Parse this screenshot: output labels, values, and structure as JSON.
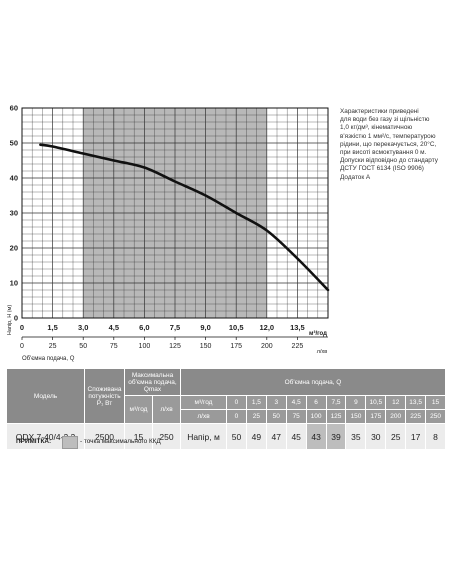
{
  "chart_data": {
    "type": "line",
    "x_primary": {
      "label": "м³/год",
      "ticks": [
        "0",
        "1,5",
        "3,0",
        "4,5",
        "6,0",
        "7,5",
        "9,0",
        "10,5",
        "12,0",
        "13,5"
      ],
      "range": [
        0,
        15
      ]
    },
    "x_secondary": {
      "label": "Об'ємна подача, Q",
      "unit": "л/хв",
      "ticks": [
        "0",
        "25",
        "50",
        "75",
        "100",
        "125",
        "150",
        "175",
        "200",
        "225"
      ],
      "range": [
        0,
        250
      ]
    },
    "ylabel": "Напір, Н (м)",
    "y_ticks": [
      "0",
      "10",
      "20",
      "30",
      "40",
      "50",
      "60"
    ],
    "ylim": [
      0,
      60
    ],
    "grid": true,
    "series": [
      {
        "x": [
          0.9,
          1.5,
          3,
          4.5,
          6,
          7.5,
          9,
          10.5,
          12,
          13.5,
          15
        ],
        "y": [
          49.5,
          49,
          47,
          45,
          43,
          39,
          35,
          30,
          25,
          17,
          8
        ]
      }
    ],
    "efficiency_zone": {
      "x_range": [
        3,
        12
      ]
    },
    "colors": {
      "curve": "#111111",
      "zone": "#b8b8b8",
      "grid": "#333333"
    }
  },
  "notes": [
    "Характеристики приведені",
    "для води без газу зі щільністю",
    "1,0 кг/дм³, кінематичною",
    "в'язкістю 1 мм²/с, температурою",
    "рідини, що перекачується, 20°С,",
    "при висоті всмоктування 0 м.",
    "Допуски відповідно до стандарту",
    "ДСТУ ГОСТ 6134 (ISO 9906)",
    "Додаток А"
  ],
  "table": {
    "col_model": "Модель",
    "col_power": "Споживана потужність Р₁ Вт",
    "col_max_flow": "Максимальна об'ємна подача, Qmax",
    "col_flow": "Об'ємна подача, Q",
    "unit_m3h": "м³/год",
    "unit_lmin": "л/хв",
    "q_m3h": [
      "0",
      "1,5",
      "3",
      "4,5",
      "6",
      "7,5",
      "9",
      "10,5",
      "12",
      "13,5",
      "15"
    ],
    "q_lmin": [
      "0",
      "25",
      "50",
      "75",
      "100",
      "125",
      "150",
      "175",
      "200",
      "225",
      "250"
    ],
    "head_label": "Напір, м",
    "model": "QDX 7-40/4-2,2",
    "power": "2500",
    "qmax_m3h": "15",
    "qmax_lmin": "250",
    "heads": [
      "50",
      "49",
      "47",
      "45",
      "43",
      "39",
      "35",
      "30",
      "25",
      "17",
      "8"
    ],
    "highlight": [
      false,
      false,
      false,
      false,
      true,
      true,
      false,
      false,
      false,
      false,
      false
    ]
  },
  "legend": {
    "label": "ПРИМІТКА:",
    "text": "- точка максимального ККД"
  }
}
